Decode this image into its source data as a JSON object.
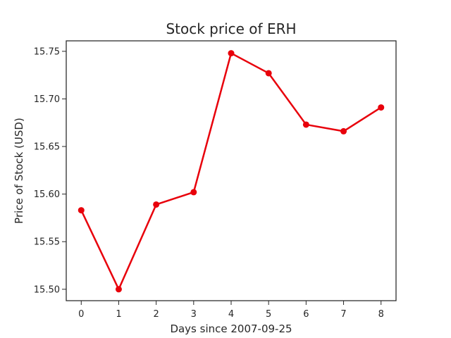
{
  "chart_data": {
    "type": "line",
    "title": "Stock price of ERH",
    "xlabel": "Days since 2007-09-25",
    "ylabel": "Price of Stock (USD)",
    "x": [
      0,
      1,
      2,
      3,
      4,
      5,
      6,
      7,
      8
    ],
    "xticks": [
      "0",
      "1",
      "2",
      "3",
      "4",
      "5",
      "6",
      "7",
      "8"
    ],
    "xlim": [
      -0.4,
      8.4
    ],
    "yticks": [
      "15.50",
      "15.55",
      "15.60",
      "15.65",
      "15.70",
      "15.75"
    ],
    "ylim": [
      15.488,
      15.761
    ],
    "grid": false,
    "series": [
      {
        "color": "#e8000b",
        "marker": "circle",
        "values": [
          15.583,
          15.5,
          15.589,
          15.602,
          15.748,
          15.727,
          15.673,
          15.666,
          15.691
        ]
      }
    ]
  }
}
